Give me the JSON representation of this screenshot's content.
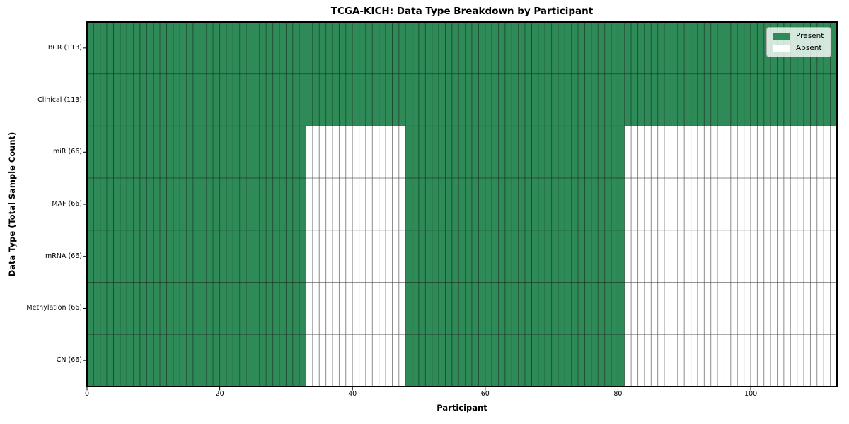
{
  "chart_data": {
    "type": "heatmap",
    "title": "TCGA-KICH: Data Type Breakdown by Participant",
    "xlabel": "Participant",
    "ylabel": "Data Type (Total Sample Count)",
    "n_participants": 113,
    "x_ticks": [
      0,
      20,
      40,
      60,
      80,
      100
    ],
    "xlim": [
      0,
      113
    ],
    "grid": "cell-borders",
    "legend_position": "upper-right",
    "colors": {
      "present": "#2e8b57",
      "absent": "#ffffff",
      "cell_edge": "rgba(0,0,0,0.33)",
      "spine": "#000000",
      "legend_border": "#b0b0b0"
    },
    "legend": [
      {
        "label": "Present",
        "color_key": "present"
      },
      {
        "label": "Absent",
        "color_key": "absent"
      }
    ],
    "rows": [
      {
        "label": "BCR (113)",
        "total": 113,
        "present_ranges": [
          [
            0,
            113
          ]
        ]
      },
      {
        "label": "Clinical (113)",
        "total": 113,
        "present_ranges": [
          [
            0,
            113
          ]
        ]
      },
      {
        "label": "miR (66)",
        "total": 66,
        "present_ranges": [
          [
            0,
            33
          ],
          [
            48,
            81
          ]
        ]
      },
      {
        "label": "MAF (66)",
        "total": 66,
        "present_ranges": [
          [
            0,
            33
          ],
          [
            48,
            81
          ]
        ]
      },
      {
        "label": "mRNA (66)",
        "total": 66,
        "present_ranges": [
          [
            0,
            33
          ],
          [
            48,
            81
          ]
        ]
      },
      {
        "label": "Methylation (66)",
        "total": 66,
        "present_ranges": [
          [
            0,
            33
          ],
          [
            48,
            81
          ]
        ]
      },
      {
        "label": "CN (66)",
        "total": 66,
        "present_ranges": [
          [
            0,
            33
          ],
          [
            48,
            81
          ]
        ]
      }
    ]
  }
}
